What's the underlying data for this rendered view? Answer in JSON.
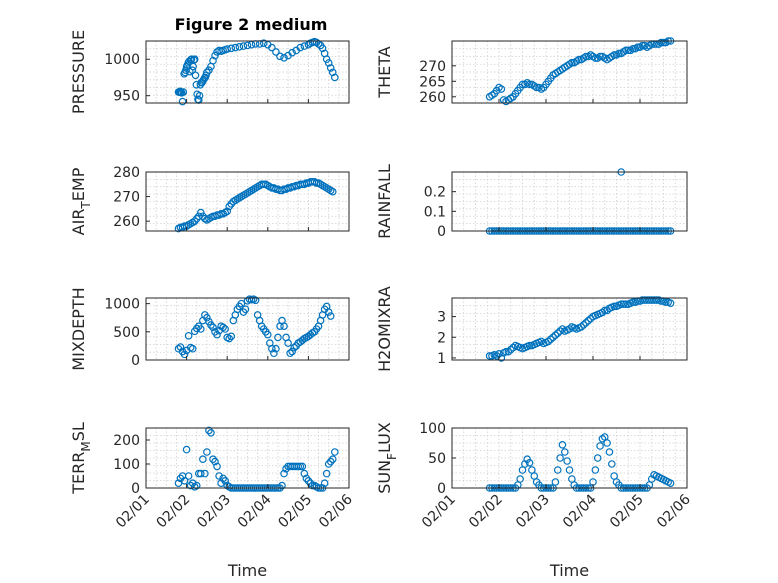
{
  "figure": {
    "title": "Figure 2 medium"
  },
  "colors": {
    "series": "#0072BD",
    "axis": "#262626",
    "grid": "#cfcfcf"
  },
  "chart_data": [
    {
      "type": "scatter",
      "ylabel": "PRESSURE",
      "ylim": [
        940,
        1025
      ],
      "yticks": [
        950,
        1000
      ],
      "grid": true,
      "x": [
        1.8,
        1.82,
        1.84,
        1.86,
        1.88,
        1.9,
        1.92,
        1.94,
        1.96,
        1.98,
        2.0,
        2.02,
        2.04,
        2.06,
        2.08,
        2.1,
        2.12,
        2.14,
        2.16,
        2.18,
        2.2,
        2.22,
        2.24,
        2.26,
        2.28,
        2.3,
        2.32,
        2.34,
        2.36,
        2.38,
        2.4,
        2.42,
        2.44,
        2.46,
        2.48,
        2.5,
        2.55,
        2.6,
        2.65,
        2.7,
        2.75,
        2.8,
        2.85,
        2.9,
        2.95,
        3.0,
        3.1,
        3.2,
        3.3,
        3.4,
        3.5,
        3.6,
        3.7,
        3.8,
        3.9,
        4.0,
        4.1,
        4.2,
        4.3,
        4.4,
        4.5,
        4.6,
        4.7,
        4.8,
        4.9,
        5.0,
        5.05,
        5.1,
        5.15,
        5.2,
        5.25,
        5.3,
        5.35,
        5.4,
        5.45,
        5.5,
        5.55,
        5.6,
        5.65
      ],
      "y": [
        955,
        955,
        956,
        955,
        954,
        942,
        955,
        980,
        982,
        985,
        990,
        992,
        995,
        997,
        983,
        999,
        1000,
        985,
        990,
        999,
        1000,
        978,
        965,
        952,
        945,
        944,
        950,
        965,
        968,
        968,
        970,
        972,
        974,
        975,
        978,
        982,
        985,
        990,
        998,
        1005,
        1010,
        1012,
        1011,
        1012,
        1013,
        1014,
        1015,
        1016,
        1017,
        1018,
        1019,
        1020,
        1021,
        1021,
        1022,
        1020,
        1016,
        1010,
        1004,
        1002,
        1005,
        1009,
        1012,
        1016,
        1018,
        1020,
        1022,
        1023,
        1024,
        1023,
        1021,
        1019,
        1015,
        1008,
        1000,
        995,
        988,
        982,
        975
      ]
    },
    {
      "type": "scatter",
      "ylabel": "THETA",
      "ylim": [
        258,
        278
      ],
      "yticks": [
        260,
        265,
        270
      ],
      "grid": true,
      "x": [
        1.8,
        1.85,
        1.9,
        1.95,
        2.0,
        2.05,
        2.1,
        2.15,
        2.2,
        2.25,
        2.3,
        2.35,
        2.4,
        2.45,
        2.5,
        2.55,
        2.6,
        2.65,
        2.7,
        2.75,
        2.8,
        2.85,
        2.9,
        2.95,
        3.0,
        3.05,
        3.1,
        3.15,
        3.2,
        3.25,
        3.3,
        3.35,
        3.4,
        3.45,
        3.5,
        3.55,
        3.6,
        3.65,
        3.7,
        3.75,
        3.8,
        3.85,
        3.9,
        3.95,
        4.0,
        4.05,
        4.1,
        4.15,
        4.2,
        4.25,
        4.3,
        4.35,
        4.4,
        4.45,
        4.5,
        4.55,
        4.6,
        4.65,
        4.7,
        4.75,
        4.8,
        4.85,
        4.9,
        4.95,
        5.0,
        5.05,
        5.1,
        5.15,
        5.2,
        5.25,
        5.3,
        5.35,
        5.4,
        5.45,
        5.5,
        5.55,
        5.6,
        5.65
      ],
      "y": [
        260,
        260.5,
        261,
        262,
        263,
        262.5,
        259,
        258.5,
        259,
        259.5,
        260,
        261,
        262,
        263,
        264,
        264,
        264.5,
        264,
        264,
        263.5,
        263,
        263,
        262.5,
        263,
        264,
        265,
        266,
        267,
        267.5,
        268,
        268.5,
        269,
        269.5,
        270,
        270.5,
        271,
        271,
        271.5,
        272,
        272,
        272.5,
        273,
        273,
        273.5,
        273,
        272.5,
        272.5,
        273,
        273,
        272.5,
        272,
        272.5,
        273,
        273.5,
        273.5,
        274,
        274,
        274.5,
        275,
        275,
        275,
        275.5,
        275.5,
        276,
        276,
        276.5,
        276.5,
        276,
        276.5,
        277,
        277,
        277,
        277,
        277.5,
        277.5,
        277.5,
        278,
        278
      ]
    },
    {
      "type": "scatter",
      "ylabel": "AIR_TEMP",
      "ylabel_display": [
        "AIR",
        "T",
        "EMP"
      ],
      "ylim": [
        256,
        280
      ],
      "yticks": [
        260,
        270,
        280
      ],
      "grid": true,
      "x": [
        1.8,
        1.85,
        1.9,
        1.95,
        2.0,
        2.05,
        2.1,
        2.15,
        2.2,
        2.25,
        2.3,
        2.35,
        2.4,
        2.45,
        2.5,
        2.55,
        2.6,
        2.65,
        2.7,
        2.75,
        2.8,
        2.85,
        2.9,
        2.95,
        3.0,
        3.05,
        3.1,
        3.15,
        3.2,
        3.25,
        3.3,
        3.35,
        3.4,
        3.45,
        3.5,
        3.55,
        3.6,
        3.65,
        3.7,
        3.75,
        3.8,
        3.85,
        3.9,
        3.95,
        4.0,
        4.05,
        4.1,
        4.15,
        4.2,
        4.25,
        4.3,
        4.35,
        4.4,
        4.45,
        4.5,
        4.55,
        4.6,
        4.65,
        4.7,
        4.75,
        4.8,
        4.85,
        4.9,
        4.95,
        5.0,
        5.05,
        5.1,
        5.15,
        5.2,
        5.25,
        5.3,
        5.35,
        5.4,
        5.45,
        5.5,
        5.55,
        5.6
      ],
      "y": [
        257,
        257.5,
        257.5,
        258,
        258,
        258.5,
        259,
        259.5,
        260,
        261,
        262,
        263.5,
        262,
        261,
        260.5,
        261,
        261.5,
        262,
        262,
        262.5,
        262.5,
        263,
        263,
        263.5,
        264,
        266,
        267,
        268,
        268.5,
        269,
        269.5,
        270,
        270.5,
        271,
        271.5,
        272,
        272.5,
        273,
        273.5,
        274,
        274.5,
        275,
        275,
        275,
        274.5,
        274,
        273.5,
        273.5,
        273,
        273,
        272.5,
        272.5,
        273,
        273,
        273.5,
        273.5,
        274,
        274,
        274.5,
        274.5,
        275,
        275,
        275,
        275.5,
        275.5,
        276,
        276,
        276,
        275.5,
        275.5,
        275,
        274.5,
        274,
        273.5,
        273,
        272.5,
        272
      ]
    },
    {
      "type": "scatter",
      "ylabel": "RAINFALL",
      "ylim": [
        0,
        0.3
      ],
      "yticks": [
        0,
        0.1,
        0.2
      ],
      "grid": true,
      "x": [
        1.8,
        1.85,
        1.9,
        1.95,
        2.0,
        2.05,
        2.1,
        2.15,
        2.2,
        2.25,
        2.3,
        2.35,
        2.4,
        2.45,
        2.5,
        2.55,
        2.6,
        2.65,
        2.7,
        2.75,
        2.8,
        2.85,
        2.9,
        2.95,
        3.0,
        3.05,
        3.1,
        3.15,
        3.2,
        3.25,
        3.3,
        3.35,
        3.4,
        3.45,
        3.5,
        3.55,
        3.6,
        3.65,
        3.7,
        3.75,
        3.8,
        3.85,
        3.9,
        3.95,
        4.0,
        4.05,
        4.1,
        4.15,
        4.2,
        4.25,
        4.3,
        4.35,
        4.4,
        4.45,
        4.5,
        4.55,
        4.6,
        4.65,
        4.7,
        4.75,
        4.8,
        4.85,
        4.9,
        4.95,
        5.0,
        5.05,
        5.1,
        5.15,
        5.2,
        5.25,
        5.3,
        5.35,
        5.4,
        5.45,
        5.5,
        5.55,
        5.6,
        5.65,
        4.6
      ],
      "y": [
        0,
        0,
        0,
        0,
        0,
        0,
        0,
        0,
        0,
        0,
        0,
        0,
        0,
        0,
        0,
        0,
        0,
        0,
        0,
        0,
        0,
        0,
        0,
        0,
        0,
        0,
        0,
        0,
        0,
        0,
        0,
        0,
        0,
        0,
        0,
        0,
        0,
        0,
        0,
        0,
        0,
        0,
        0,
        0,
        0,
        0,
        0,
        0,
        0,
        0,
        0,
        0,
        0,
        0,
        0,
        0,
        0,
        0,
        0,
        0,
        0,
        0,
        0,
        0,
        0,
        0,
        0,
        0,
        0,
        0,
        0,
        0,
        0,
        0,
        0,
        0,
        0,
        0,
        0.3
      ]
    },
    {
      "type": "scatter",
      "ylabel": "MIXDEPTH",
      "ylim": [
        0,
        1100
      ],
      "yticks": [
        0,
        500,
        1000
      ],
      "grid": true,
      "x": [
        1.8,
        1.85,
        1.9,
        1.95,
        2.0,
        2.05,
        2.1,
        2.15,
        2.2,
        2.25,
        2.3,
        2.35,
        2.4,
        2.45,
        2.5,
        2.55,
        2.6,
        2.65,
        2.7,
        2.75,
        2.8,
        2.85,
        2.9,
        2.95,
        3.0,
        3.05,
        3.1,
        3.15,
        3.2,
        3.25,
        3.3,
        3.35,
        3.4,
        3.45,
        3.5,
        3.55,
        3.6,
        3.65,
        3.7,
        3.75,
        3.8,
        3.85,
        3.9,
        3.95,
        4.0,
        4.05,
        4.1,
        4.15,
        4.2,
        4.25,
        4.3,
        4.35,
        4.4,
        4.45,
        4.5,
        4.55,
        4.6,
        4.65,
        4.7,
        4.75,
        4.8,
        4.85,
        4.9,
        4.95,
        5.0,
        5.05,
        5.1,
        5.15,
        5.2,
        5.25,
        5.3,
        5.35,
        5.4,
        5.45,
        5.5,
        5.55
      ],
      "y": [
        200,
        230,
        150,
        100,
        170,
        430,
        220,
        200,
        510,
        560,
        600,
        550,
        700,
        800,
        750,
        680,
        620,
        580,
        500,
        450,
        520,
        600,
        580,
        550,
        400,
        380,
        420,
        700,
        800,
        900,
        950,
        1000,
        850,
        900,
        1050,
        1080,
        1070,
        1080,
        1060,
        800,
        700,
        600,
        550,
        500,
        450,
        300,
        200,
        120,
        200,
        400,
        600,
        700,
        600,
        400,
        300,
        120,
        150,
        220,
        250,
        300,
        320,
        350,
        380,
        400,
        420,
        450,
        480,
        500,
        550,
        600,
        700,
        800,
        900,
        950,
        850,
        780
      ]
    },
    {
      "type": "scatter",
      "ylabel": "H2OMIXRA",
      "ylim": [
        0.9,
        3.9
      ],
      "yticks": [
        1,
        2,
        3
      ],
      "grid": true,
      "x": [
        1.8,
        1.85,
        1.9,
        1.95,
        2.0,
        2.05,
        2.1,
        2.15,
        2.2,
        2.25,
        2.3,
        2.35,
        2.4,
        2.45,
        2.5,
        2.55,
        2.6,
        2.65,
        2.7,
        2.75,
        2.8,
        2.85,
        2.9,
        2.95,
        3.0,
        3.05,
        3.1,
        3.15,
        3.2,
        3.25,
        3.3,
        3.35,
        3.4,
        3.45,
        3.5,
        3.55,
        3.6,
        3.65,
        3.7,
        3.75,
        3.8,
        3.85,
        3.9,
        3.95,
        4.0,
        4.05,
        4.1,
        4.15,
        4.2,
        4.25,
        4.3,
        4.35,
        4.4,
        4.45,
        4.5,
        4.55,
        4.6,
        4.65,
        4.7,
        4.75,
        4.8,
        4.85,
        4.9,
        4.95,
        5.0,
        5.05,
        5.1,
        5.15,
        5.2,
        5.25,
        5.3,
        5.35,
        5.4,
        5.45,
        5.5,
        5.55,
        5.6,
        5.65
      ],
      "y": [
        1.1,
        1.1,
        1.15,
        1.1,
        1.2,
        1.0,
        1.25,
        1.3,
        1.3,
        1.4,
        1.5,
        1.6,
        1.55,
        1.5,
        1.45,
        1.5,
        1.55,
        1.6,
        1.6,
        1.65,
        1.7,
        1.75,
        1.8,
        1.7,
        1.75,
        1.8,
        1.9,
        2.0,
        2.1,
        2.2,
        2.3,
        2.4,
        2.3,
        2.35,
        2.4,
        2.5,
        2.45,
        2.4,
        2.45,
        2.5,
        2.6,
        2.7,
        2.8,
        2.9,
        3.0,
        3.05,
        3.1,
        3.15,
        3.2,
        3.3,
        3.3,
        3.4,
        3.45,
        3.5,
        3.5,
        3.55,
        3.6,
        3.6,
        3.6,
        3.6,
        3.65,
        3.7,
        3.7,
        3.75,
        3.75,
        3.8,
        3.8,
        3.8,
        3.8,
        3.8,
        3.8,
        3.8,
        3.8,
        3.75,
        3.75,
        3.7,
        3.7,
        3.65
      ]
    },
    {
      "type": "scatter",
      "ylabel": "TERR_MSL",
      "ylabel_display": [
        "TERR",
        "M",
        "SL"
      ],
      "ylim": [
        0,
        250
      ],
      "yticks": [
        0,
        100,
        200
      ],
      "grid": true,
      "xlabel": "Time",
      "xticks": [
        "02/01",
        "02/02",
        "02/03",
        "02/04",
        "02/05",
        "02/06"
      ],
      "x": [
        1.8,
        1.85,
        1.9,
        1.95,
        2.0,
        2.05,
        2.1,
        2.15,
        2.2,
        2.25,
        2.3,
        2.35,
        2.4,
        2.45,
        2.5,
        2.55,
        2.6,
        2.65,
        2.7,
        2.75,
        2.8,
        2.85,
        2.9,
        2.95,
        3.0,
        3.05,
        3.1,
        3.15,
        3.2,
        3.25,
        3.3,
        3.35,
        3.4,
        3.45,
        3.5,
        3.55,
        3.6,
        3.65,
        3.7,
        3.75,
        3.8,
        3.85,
        3.9,
        3.95,
        4.0,
        4.05,
        4.1,
        4.15,
        4.2,
        4.25,
        4.3,
        4.35,
        4.4,
        4.45,
        4.5,
        4.55,
        4.6,
        4.65,
        4.7,
        4.75,
        4.8,
        4.85,
        4.9,
        4.95,
        5.0,
        5.05,
        5.1,
        5.15,
        5.2,
        5.25,
        5.3,
        5.35,
        5.4,
        5.45,
        5.5,
        5.55,
        5.6,
        5.65
      ],
      "y": [
        20,
        40,
        50,
        30,
        160,
        50,
        10,
        20,
        5,
        10,
        60,
        60,
        120,
        60,
        150,
        240,
        230,
        120,
        110,
        90,
        50,
        20,
        40,
        30,
        10,
        5,
        0,
        0,
        0,
        0,
        0,
        0,
        0,
        0,
        0,
        0,
        0,
        0,
        0,
        0,
        0,
        0,
        0,
        0,
        0,
        0,
        0,
        0,
        0,
        0,
        0,
        10,
        60,
        80,
        90,
        90,
        90,
        90,
        90,
        90,
        90,
        90,
        60,
        40,
        30,
        20,
        10,
        10,
        5,
        0,
        0,
        0,
        20,
        60,
        100,
        110,
        120,
        150
      ]
    },
    {
      "type": "scatter",
      "ylabel": "SUN_FLUX",
      "ylabel_display": [
        "SUN",
        "F",
        "LUX"
      ],
      "ylim": [
        0,
        100
      ],
      "yticks": [
        0,
        50,
        100
      ],
      "grid": true,
      "xlabel": "Time",
      "xticks": [
        "02/01",
        "02/02",
        "02/03",
        "02/04",
        "02/05",
        "02/06"
      ],
      "x": [
        1.8,
        1.85,
        1.9,
        1.95,
        2.0,
        2.05,
        2.1,
        2.15,
        2.2,
        2.25,
        2.3,
        2.35,
        2.4,
        2.45,
        2.5,
        2.55,
        2.6,
        2.65,
        2.7,
        2.75,
        2.8,
        2.85,
        2.9,
        2.95,
        3.0,
        3.05,
        3.1,
        3.15,
        3.2,
        3.25,
        3.3,
        3.35,
        3.4,
        3.45,
        3.5,
        3.55,
        3.6,
        3.65,
        3.7,
        3.75,
        3.8,
        3.85,
        3.9,
        3.95,
        4.0,
        4.05,
        4.1,
        4.15,
        4.2,
        4.25,
        4.3,
        4.35,
        4.4,
        4.45,
        4.5,
        4.55,
        4.6,
        4.65,
        4.7,
        4.75,
        4.8,
        4.85,
        4.9,
        4.95,
        5.0,
        5.05,
        5.1,
        5.15,
        5.2,
        5.25,
        5.3,
        5.35,
        5.4,
        5.45,
        5.5,
        5.55,
        5.6,
        5.65
      ],
      "y": [
        0,
        0,
        0,
        0,
        0,
        0,
        0,
        0,
        0,
        0,
        0,
        0,
        5,
        15,
        30,
        40,
        48,
        42,
        30,
        20,
        10,
        5,
        0,
        0,
        0,
        0,
        0,
        0,
        10,
        30,
        50,
        72,
        60,
        45,
        30,
        15,
        5,
        0,
        0,
        0,
        0,
        0,
        0,
        0,
        10,
        30,
        50,
        70,
        82,
        85,
        75,
        60,
        40,
        20,
        10,
        5,
        0,
        0,
        0,
        0,
        0,
        0,
        0,
        0,
        0,
        0,
        0,
        0,
        5,
        15,
        22,
        20,
        18,
        16,
        14,
        12,
        10,
        8
      ]
    }
  ]
}
